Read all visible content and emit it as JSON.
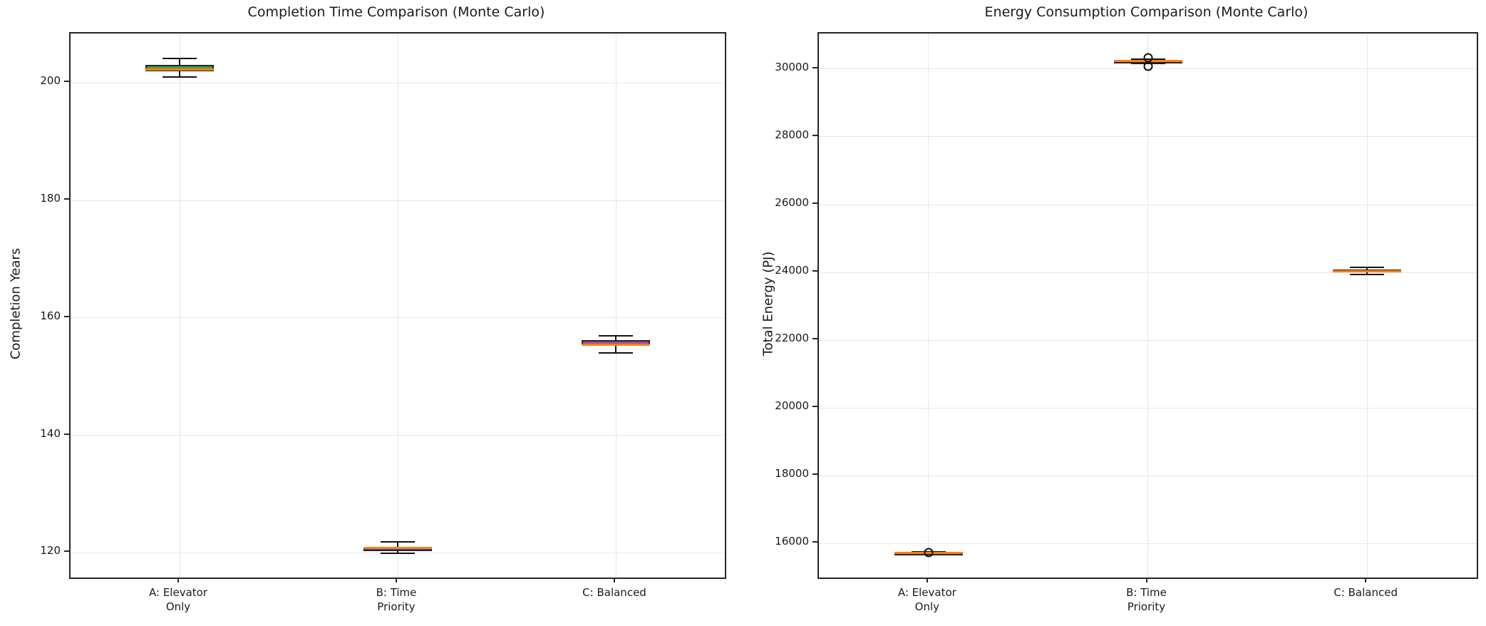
{
  "figure": {
    "background": "#ffffff",
    "median_color": "#ff7f0e",
    "edge_color": "#262626",
    "whisker_color": "#111111"
  },
  "chart_data": [
    {
      "type": "box",
      "title": "Completion Time Comparison (Monte Carlo)",
      "ylabel": "Completion Years",
      "xlabel": "",
      "categories": [
        "A: Elevator\nOnly",
        "B: Time\nPriority",
        "C: Balanced"
      ],
      "yticks": [
        120,
        140,
        160,
        180,
        200
      ],
      "ylim": [
        115.8,
        208.4
      ],
      "grid": true,
      "legend": "none",
      "series": [
        {
          "name": "A: Elevator Only",
          "whislo": 201.0,
          "q1": 202.0,
          "med": 202.3,
          "q3": 203.1,
          "whishi": 204.2,
          "fliers": [],
          "fill": "#4a9e4c"
        },
        {
          "name": "B: Time Priority",
          "whislo": 119.9,
          "q1": 120.25,
          "med": 120.85,
          "q3": 121.0,
          "whishi": 121.9,
          "fliers": [],
          "fill": "#4545d8"
        },
        {
          "name": "C: Balanced",
          "whislo": 154.0,
          "q1": 155.2,
          "med": 155.45,
          "q3": 156.2,
          "whishi": 157.0,
          "fliers": [],
          "fill": "#9c4f9e"
        }
      ]
    },
    {
      "type": "box",
      "title": "Energy Consumption Comparison (Monte Carlo)",
      "ylabel": "Total Energy (PJ)",
      "xlabel": "",
      "categories": [
        "A: Elevator\nOnly",
        "B: Time\nPriority",
        "C: Balanced"
      ],
      "yticks": [
        16000,
        18000,
        20000,
        22000,
        24000,
        26000,
        28000,
        30000
      ],
      "ylim": [
        15000,
        31050
      ],
      "grid": true,
      "legend": "none",
      "series": [
        {
          "name": "A: Elevator Only",
          "whislo": 15710,
          "q1": 15722,
          "med": 15730,
          "q3": 15740,
          "whishi": 15755,
          "fliers": [
            15730
          ],
          "fill": "none"
        },
        {
          "name": "B: Time Priority",
          "whislo": 30170,
          "q1": 30205,
          "med": 30235,
          "q3": 30260,
          "whishi": 30290,
          "fliers": [
            30330,
            30080
          ],
          "fill": "none"
        },
        {
          "name": "C: Balanced",
          "whislo": 23940,
          "q1": 24010,
          "med": 24045,
          "q3": 24090,
          "whishi": 24160,
          "fliers": [],
          "fill": "none"
        }
      ]
    }
  ]
}
